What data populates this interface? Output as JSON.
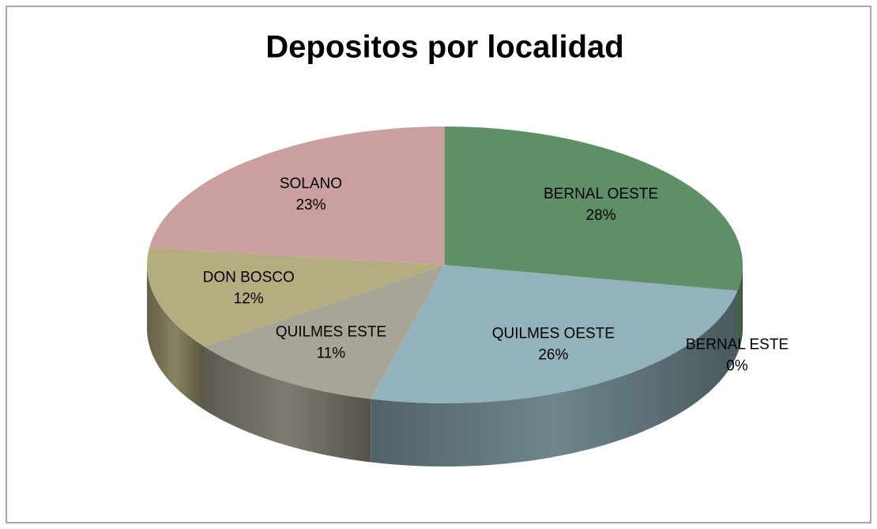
{
  "chart_data": {
    "type": "pie3d",
    "title": "Depositos por localidad",
    "categories": [
      "BERNAL OESTE",
      "BERNAL ESTE",
      "QUILMES OESTE",
      "QUILMES ESTE",
      "DON BOSCO",
      "SOLANO"
    ],
    "values": [
      28,
      0,
      26,
      11,
      12,
      23
    ],
    "value_labels": [
      "28%",
      "0%",
      "26%",
      "11%",
      "12%",
      "23%"
    ],
    "colors": [
      "#5f8f66",
      "#4f6f8f",
      "#93b3bc",
      "#a8a596",
      "#b5ad80",
      "#c99f9f"
    ]
  }
}
